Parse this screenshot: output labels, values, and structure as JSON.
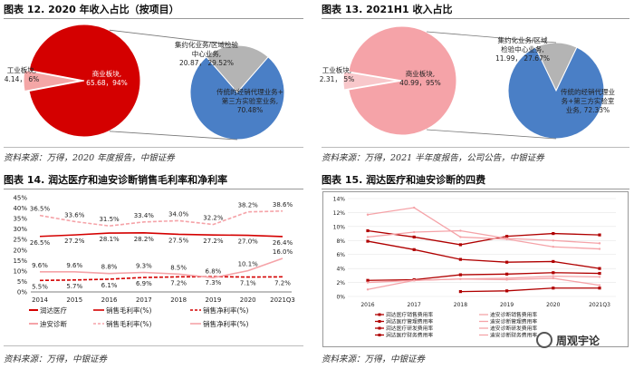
{
  "panels": {
    "p12": {
      "title": "图表 12. 2020 年收入占比（按项目）",
      "source": "资料来源：万得，2020 年度报告，中银证券"
    },
    "p13": {
      "title": "图表 13. 2021H1 收入占比",
      "source": "资料来源：万得，2021 半年度报告，公司公告，中银证券"
    },
    "p14": {
      "title": "图表 14. 润达医疗和迪安诊断销售毛利率和净利率",
      "source": "资料来源：万得，中银证券"
    },
    "p15": {
      "title": "图表 15. 润达医疗和迪安诊断的四费",
      "source": "资料来源：万得，中银证券"
    }
  },
  "watermark": "周观宇论",
  "chart_data": [
    {
      "id": "fig12",
      "type": "pie",
      "title": "图表 12. 2020 年收入占比（按项目）",
      "main": {
        "slices": [
          {
            "label_lines": [
              "商业板块,",
              "65.68，94%"
            ],
            "value": 65.68,
            "pct": 94,
            "color": "#d40000",
            "exploded": false
          },
          {
            "label_lines": [
              "工业板块,",
              "4.14， 6%"
            ],
            "value": 4.14,
            "pct": 6,
            "color": "#f4a6a6",
            "exploded": true
          }
        ]
      },
      "sub": {
        "slices": [
          {
            "label_lines": [
              "集约化业务/区域检验",
              "中心业务,",
              "20.87， 29.52%"
            ],
            "value": 20.87,
            "pct": 29.52,
            "color": "#b4b4b4"
          },
          {
            "label_lines": [
              "传统的经销代理业务+",
              "第三方实验室业务,",
              "70.48%"
            ],
            "value": 70.48,
            "pct": 70.48,
            "color": "#4a7fc6"
          }
        ]
      }
    },
    {
      "id": "fig13",
      "type": "pie",
      "title": "图表 13. 2021H1 收入占比",
      "main": {
        "slices": [
          {
            "label_lines": [
              "商业板块,",
              "40.99，95%"
            ],
            "value": 40.99,
            "pct": 95,
            "color": "#f5a3a8",
            "exploded": false
          },
          {
            "label_lines": [
              "工业板块,",
              "2.31， 5%"
            ],
            "value": 2.31,
            "pct": 5,
            "color": "#f8c8cb",
            "exploded": true
          }
        ]
      },
      "sub": {
        "slices": [
          {
            "label_lines": [
              "集约化业务/区域",
              "检验中心业务,",
              "11.99， 27.67%"
            ],
            "value": 11.99,
            "pct": 27.67,
            "color": "#b4b4b4"
          },
          {
            "label_lines": [
              "传统的经销代理业",
              "务+第三方实验室",
              "业务, 72.33%"
            ],
            "value": 72.33,
            "pct": 72.33,
            "color": "#4a7fc6"
          }
        ]
      }
    },
    {
      "id": "fig14",
      "type": "line",
      "title": "图表 14. 润达医疗和迪安诊断销售毛利率和净利率",
      "categories": [
        "2014",
        "2015",
        "2016",
        "2017",
        "2018",
        "2019",
        "2020",
        "2021Q3"
      ],
      "ylim": [
        0,
        45
      ],
      "yticks": [
        0,
        5,
        10,
        15,
        20,
        25,
        30,
        35,
        40,
        45
      ],
      "ytick_labels": [
        "0%",
        "5%",
        "10%",
        "15%",
        "20%",
        "25%",
        "30%",
        "35%",
        "40%",
        "45%"
      ],
      "series": [
        {
          "name": "润达医疗 销售毛利率(%)",
          "values": [
            26.5,
            27.2,
            28.1,
            28.2,
            27.5,
            27.2,
            27.0,
            26.4
          ],
          "labels": [
            "26.5%",
            "27.2%",
            "28.1%",
            "28.2%",
            "27.5%",
            "27.2%",
            "27.0%",
            "26.4%"
          ],
          "color": "#d40000",
          "style": "solid",
          "label_pos": "below"
        },
        {
          "name": "迪安诊断 销售毛利率(%)",
          "values": [
            36.5,
            33.6,
            31.5,
            33.4,
            34.0,
            32.2,
            38.2,
            38.6
          ],
          "labels": [
            "36.5%",
            "33.6%",
            "31.5%",
            "33.4%",
            "34.0%",
            "32.2%",
            "38.2%",
            "38.6%"
          ],
          "color": "#f5a3a8",
          "style": "dashed",
          "label_pos": "above"
        },
        {
          "name": "润达医疗 销售净利率(%)",
          "values": [
            5.5,
            5.7,
            6.1,
            6.9,
            7.2,
            7.3,
            7.1,
            7.2
          ],
          "labels": [
            "5.5%",
            "5.7%",
            "6.1%",
            "6.9%",
            "7.2%",
            "7.3%",
            "7.1%",
            "7.2%"
          ],
          "color": "#d40000",
          "style": "dashed",
          "label_pos": "below"
        },
        {
          "name": "迪安诊断 销售净利率(%)",
          "values": [
            9.6,
            9.6,
            8.8,
            9.3,
            8.5,
            6.8,
            10.1,
            16.0
          ],
          "labels": [
            "9.6%",
            "9.6%",
            "8.8%",
            "9.3%",
            "8.5%",
            "6.8%",
            "10.1%",
            "16.0%"
          ],
          "color": "#f5a3a8",
          "style": "solid",
          "label_pos": "above"
        }
      ],
      "legend": [
        {
          "text": "润达医疗",
          "kind": "header"
        },
        {
          "text": "销售毛利率(%)",
          "series": 0
        },
        {
          "text": "销售净利率(%)",
          "series": 2
        },
        {
          "text": "迪安诊断",
          "kind": "header"
        },
        {
          "text": "销售毛利率(%)",
          "series": 1
        },
        {
          "text": "销售净利率(%)",
          "series": 3
        }
      ]
    },
    {
      "id": "fig15",
      "type": "line",
      "title": "图表 15. 润达医疗和迪安诊断的四费",
      "categories": [
        "2016",
        "2017",
        "2018",
        "2019",
        "2020",
        "2021Q3"
      ],
      "ylim": [
        0,
        14
      ],
      "yticks": [
        0,
        2,
        4,
        6,
        8,
        10,
        12,
        14
      ],
      "ytick_labels": [
        "0%",
        "2%",
        "4%",
        "6%",
        "8%",
        "10%",
        "12%",
        "14%"
      ],
      "series": [
        {
          "name": "润达医疗销售费用率",
          "values": [
            9.4,
            8.5,
            7.4,
            8.6,
            9.0,
            8.8
          ],
          "color": "#b00000",
          "marker": true
        },
        {
          "name": "润达医疗管理费用率",
          "values": [
            7.9,
            6.7,
            5.3,
            4.9,
            5.0,
            4.0
          ],
          "color": "#b00000",
          "marker": true
        },
        {
          "name": "润达医疗研发费用率",
          "values": [
            2.3,
            2.4,
            3.1,
            3.2,
            3.4,
            3.3
          ],
          "color": "#b00000",
          "marker": true
        },
        {
          "name": "润达医疗财务费用率",
          "values": [
            null,
            null,
            0.7,
            0.8,
            1.2,
            1.2
          ],
          "color": "#b00000",
          "marker": true
        },
        {
          "name": "迪安诊断销售费用率",
          "values": [
            11.7,
            12.7,
            8.5,
            8.2,
            7.1,
            6.8
          ],
          "color": "#f5a3a8",
          "marker": false
        },
        {
          "name": "迪安诊断管理费用率",
          "values": [
            8.5,
            9.2,
            9.4,
            8.3,
            8.0,
            7.6
          ],
          "color": "#f5a3a8",
          "marker": false
        },
        {
          "name": "迪安诊断研发费用率",
          "values": [
            1.0,
            2.3,
            2.5,
            2.6,
            2.9,
            2.8
          ],
          "color": "#f5a3a8",
          "marker": false
        },
        {
          "name": "迪安诊断财务费用率",
          "values": [
            2.0,
            2.3,
            2.5,
            2.4,
            2.6,
            1.6
          ],
          "color": "#f5a3a8",
          "marker": false
        }
      ]
    }
  ]
}
